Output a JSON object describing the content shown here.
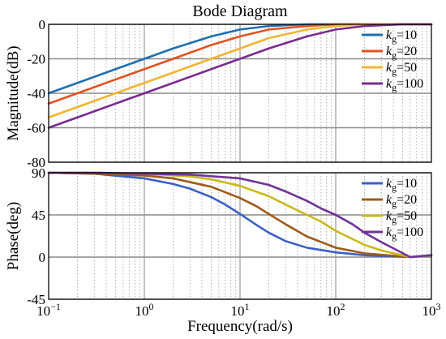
{
  "chart_data": [
    {
      "type": "line",
      "title": "Bode Diagram",
      "xlabel": "",
      "ylabel": "Magnitude(dB)",
      "xscale": "log",
      "xlim": [
        0.1,
        1000
      ],
      "ylim": [
        -80,
        0
      ],
      "yticks": [
        0,
        -20,
        -40,
        -60,
        -80
      ],
      "grid": true,
      "legend": "top-right",
      "series": [
        {
          "name": "kg=10",
          "color": "#1f6fb2",
          "x": [
            0.1,
            0.2,
            0.5,
            1,
            2,
            5,
            10,
            20,
            50,
            100,
            200,
            500,
            1000
          ],
          "y": [
            -40,
            -34,
            -26,
            -20,
            -14,
            -7,
            -3,
            -1,
            0,
            0,
            0,
            0,
            0
          ]
        },
        {
          "name": "kg=20",
          "color": "#e2521f",
          "x": [
            0.1,
            0.2,
            0.5,
            1,
            2,
            5,
            10,
            20,
            50,
            100,
            200,
            500,
            1000
          ],
          "y": [
            -46,
            -40,
            -32,
            -26,
            -20,
            -12,
            -7,
            -3,
            -1,
            0,
            0,
            0,
            0
          ]
        },
        {
          "name": "kg=50",
          "color": "#f2b530",
          "x": [
            0.1,
            0.2,
            0.5,
            1,
            2,
            5,
            10,
            20,
            50,
            100,
            200,
            500,
            1000
          ],
          "y": [
            -54,
            -48,
            -40,
            -34,
            -28,
            -20,
            -14,
            -8,
            -3,
            -1,
            0,
            0,
            0
          ]
        },
        {
          "name": "kg=100",
          "color": "#7a2b8f",
          "x": [
            0.1,
            0.2,
            0.5,
            1,
            2,
            5,
            10,
            20,
            50,
            100,
            200,
            500,
            1000
          ],
          "y": [
            -60,
            -54,
            -46,
            -40,
            -34,
            -26,
            -20,
            -14,
            -7,
            -3,
            -1,
            0,
            0
          ]
        }
      ]
    },
    {
      "type": "line",
      "title": "",
      "xlabel": "Frequency(rad/s)",
      "ylabel": "Phase(deg)",
      "xscale": "log",
      "xlim": [
        0.1,
        1000
      ],
      "ylim": [
        -45,
        90
      ],
      "yticks": [
        90,
        45,
        0,
        -45
      ],
      "xtick_labels": [
        {
          "base": "10",
          "exp": "−1"
        },
        {
          "base": "10",
          "exp": "0"
        },
        {
          "base": "10",
          "exp": "1"
        },
        {
          "base": "10",
          "exp": "2"
        },
        {
          "base": "10",
          "exp": "3"
        }
      ],
      "grid": true,
      "legend": "top-right",
      "series": [
        {
          "name": "kg=10",
          "color": "#3b5fc4",
          "x": [
            0.1,
            0.3,
            1,
            2,
            3,
            5,
            7,
            10,
            15,
            20,
            30,
            50,
            100,
            200,
            600,
            1000
          ],
          "y": [
            90,
            89,
            84,
            78,
            73,
            64,
            56,
            46,
            34,
            26,
            17,
            10,
            5,
            2,
            0,
            2
          ]
        },
        {
          "name": "kg=20",
          "color": "#9e5b1b",
          "x": [
            0.1,
            0.3,
            1,
            2,
            5,
            10,
            15,
            20,
            30,
            50,
            100,
            200,
            600,
            1000
          ],
          "y": [
            90,
            89,
            87,
            84,
            75,
            63,
            54,
            46,
            35,
            22,
            10,
            4,
            0,
            2
          ]
        },
        {
          "name": "kg=50",
          "color": "#c9b81c",
          "x": [
            0.1,
            0.3,
            1,
            3,
            5,
            10,
            20,
            30,
            50,
            70,
            100,
            200,
            300,
            600,
            1000
          ],
          "y": [
            90,
            90,
            89,
            86,
            83,
            76,
            65,
            56,
            45,
            38,
            28,
            13,
            7,
            0,
            2
          ]
        },
        {
          "name": "kg=100",
          "color": "#6f3396",
          "x": [
            0.1,
            0.3,
            1,
            3,
            10,
            20,
            30,
            50,
            70,
            100,
            150,
            200,
            300,
            600,
            1000
          ],
          "y": [
            90,
            90,
            89,
            88,
            84,
            77,
            70,
            60,
            52,
            45,
            35,
            26,
            16,
            0,
            2
          ]
        }
      ]
    }
  ]
}
